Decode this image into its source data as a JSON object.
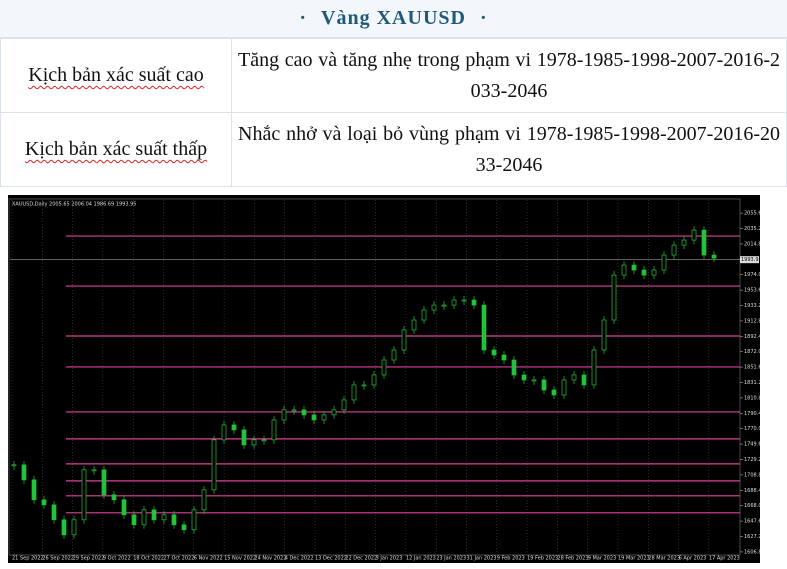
{
  "header": {
    "title": "Vàng XAUUSD",
    "decoration": "·"
  },
  "table": {
    "rows": [
      [
        "Kịch bản xác suất cao",
        "Tăng cao và tăng nhẹ trong phạm vi 1978-1985-1998-2007-2016-2033-2046"
      ],
      [
        "Kịch bản xác suất thấp",
        "Nhắc nhở và loại bỏ vùng phạm vi 1978-1985-1998-2007-2016-2033-2046"
      ]
    ]
  },
  "chart": {
    "type": "candlestick",
    "title": "XAUUSD,Daily 2005.65 2006.04 1986.69 1993.95",
    "current_price": {
      "value": 1993.95,
      "label": "1993.95"
    },
    "closes": [
      1722.1,
      1702.2,
      1675.8,
      1669.1,
      1649.3,
      1629.4,
      1649.3,
      1715.5,
      1715.5,
      1682.4,
      1675.8,
      1655.9,
      1642.7,
      1662.5,
      1649.3,
      1655.9,
      1642.7,
      1636.1,
      1662.5,
      1689.0,
      1755.2,
      1775.0,
      1768.4,
      1748.5,
      1755.2,
      1755.2,
      1781.6,
      1794.9,
      1794.9,
      1788.3,
      1781.6,
      1788.3,
      1794.9,
      1808.1,
      1828.0,
      1828.0,
      1841.2,
      1861.0,
      1874.3,
      1900.8,
      1914.0,
      1927.2,
      1933.8,
      1933.8,
      1940.5,
      1940.5,
      1933.8,
      1874.3,
      1867.7,
      1861.0,
      1841.2,
      1834.6,
      1834.6,
      1821.3,
      1814.7,
      1834.6,
      1841.2,
      1828.0,
      1874.3,
      1914.0,
      1973.5,
      1986.8,
      1980.2,
      1973.5,
      1980.2,
      2000.0,
      2013.2,
      2019.9,
      2033.1,
      2000.0,
      1996.0
    ],
    "levels": [
      2025.2,
      1959.0,
      1892.8,
      1851.8,
      1792.2,
      1756.5,
      1723.4,
      1700.9,
      1681.1,
      1658.6
    ],
    "level_color": "#e0409a",
    "up_color": "#22c33a",
    "ylim": [
      1604,
      2073
    ],
    "yticks": [
      {
        "value": 2055.6,
        "label": "2055.60"
      },
      {
        "value": 2035.2,
        "label": "2035.20"
      },
      {
        "value": 2014.8,
        "label": "2014.80"
      },
      {
        "value": 1974.0,
        "label": "1974.00"
      },
      {
        "value": 1953.6,
        "label": "1953.60"
      },
      {
        "value": 1933.2,
        "label": "1933.20"
      },
      {
        "value": 1912.8,
        "label": "1912.80"
      },
      {
        "value": 1892.4,
        "label": "1892.40"
      },
      {
        "value": 1872.0,
        "label": "1872.00"
      },
      {
        "value": 1851.6,
        "label": "1851.60"
      },
      {
        "value": 1831.2,
        "label": "1831.20"
      },
      {
        "value": 1810.8,
        "label": "1810.80"
      },
      {
        "value": 1790.4,
        "label": "1790.40"
      },
      {
        "value": 1770.0,
        "label": "1770.00"
      },
      {
        "value": 1749.6,
        "label": "1749.60"
      },
      {
        "value": 1729.2,
        "label": "1729.20"
      },
      {
        "value": 1708.8,
        "label": "1708.80"
      },
      {
        "value": 1688.4,
        "label": "1688.40"
      },
      {
        "value": 1668.0,
        "label": "1668.00"
      },
      {
        "value": 1647.6,
        "label": "1647.60"
      },
      {
        "value": 1627.2,
        "label": "1627.20"
      },
      {
        "value": 1606.8,
        "label": "1606.80"
      }
    ],
    "x_labels": [
      "21 Sep 2022",
      "26 Sep 2022",
      "29 Sep 2022",
      "9 Oct 2022",
      "18 Oct 2022",
      "27 Oct 2022",
      "6 Nov 2022",
      "15 Nov 2022",
      "24 Nov 2022",
      "4 Dec 2022",
      "13 Dec 2022",
      "22 Dec 2022",
      "3 Jan 2023",
      "12 Jan 2023",
      "23 Jan 2023",
      "31 Jan 2023",
      "9 Feb 2023",
      "19 Feb 2023",
      "28 Feb 2023",
      "9 Mar 2023",
      "19 Mar 2023",
      "28 Mar 2023",
      "6 Apr 2023",
      "17 Apr 2023"
    ]
  }
}
